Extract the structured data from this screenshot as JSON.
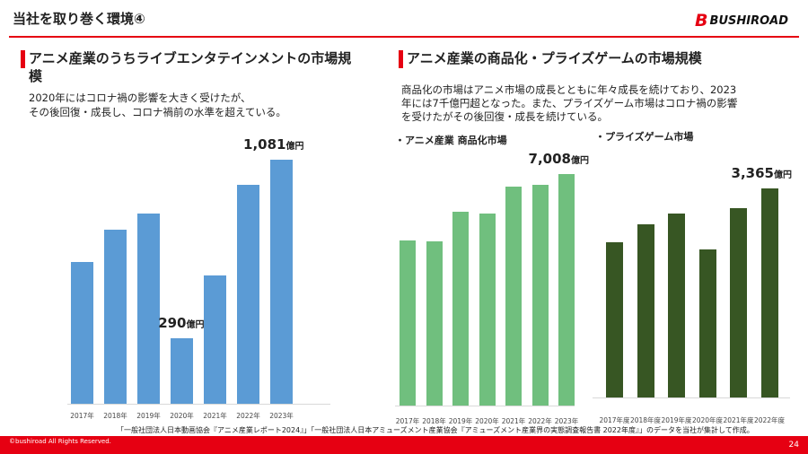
{
  "header": {
    "title": "当社を取り巻く環境④",
    "logo": "BUSHIROAD"
  },
  "left": {
    "heading": "アニメ産業のうちライブエンタテインメントの市場規模",
    "desc1": "2020年にはコロナ禍の影響を大きく受けたが、",
    "desc2": "その後回復・成長し、コロナ禍前の水準を超えている。"
  },
  "right": {
    "heading": "アニメ産業の商品化・プライズゲームの市場規模",
    "desc1": "商品化の市場はアニメ市場の成長とともに年々成長を続けており、2023",
    "desc2": "年には7千億円超となった。また、プライズゲーム市場はコロナ禍の影響",
    "desc3": "を受けたがその後回復・成長を続けている。"
  },
  "chart_data": [
    {
      "type": "bar",
      "title": "",
      "categories": [
        "2017年",
        "2018年",
        "2019年",
        "2020年",
        "2021年",
        "2022年",
        "2023年"
      ],
      "values": [
        628,
        771,
        843,
        290,
        568,
        970,
        1081
      ],
      "unit": "億円",
      "color": "#5b9bd5",
      "labels": [
        {
          "index": 3,
          "value": "290",
          "unit": "億円"
        },
        {
          "index": 6,
          "value": "1,081",
          "unit": "億円"
        }
      ]
    },
    {
      "type": "bar",
      "title": "・アニメ産業 商品化市場",
      "categories": [
        "2017年",
        "2018年",
        "2019年",
        "2020年",
        "2021年",
        "2022年",
        "2023年"
      ],
      "values": [
        5000,
        4970,
        5870,
        5810,
        6630,
        6680,
        7008
      ],
      "unit": "億円",
      "color": "#70bf7e",
      "labels": [
        {
          "index": 6,
          "value": "7,008",
          "unit": "億円"
        }
      ]
    },
    {
      "type": "bar",
      "title": "・プライズゲーム市場",
      "categories": [
        "2017年度",
        "2018年度",
        "2019年度",
        "2020年度",
        "2021年度",
        "2022年度"
      ],
      "values": [
        2500,
        2790,
        2960,
        2380,
        3050,
        3365
      ],
      "unit": "億円",
      "color": "#375623",
      "labels": [
        {
          "index": 5,
          "value": "3,365",
          "unit": "億円"
        }
      ]
    }
  ],
  "source": "「一般社団法人日本動画協会『アニメ産業レポート2024』」「一般社団法人日本アミューズメント産業協会『アミューズメント産業界の実態調査報告書 2022年度』」のデータを当社が集計して作成。",
  "footer": {
    "copyright": "©bushiroad All Rights Reserved.",
    "page": "24"
  }
}
